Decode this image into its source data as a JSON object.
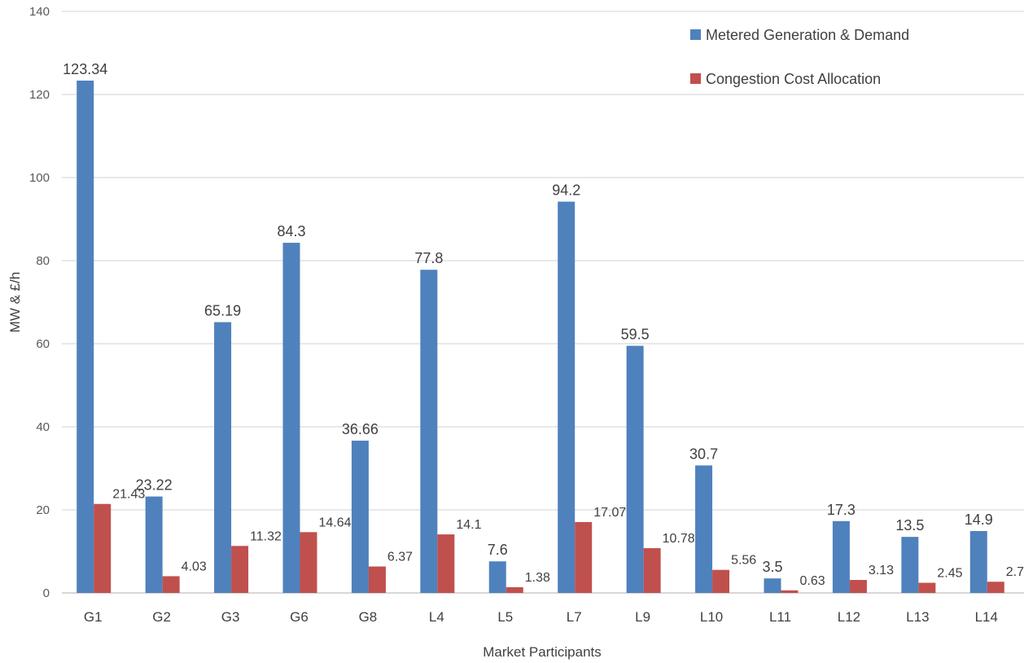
{
  "chart_data": {
    "type": "bar",
    "categories": [
      "G1",
      "G2",
      "G3",
      "G6",
      "G8",
      "L4",
      "L5",
      "L7",
      "L9",
      "L10",
      "L11",
      "L12",
      "L13",
      "L14"
    ],
    "series": [
      {
        "name": "Metered Generation & Demand",
        "color": "#4f81bd",
        "values": [
          123.34,
          23.22,
          65.19,
          84.3,
          36.66,
          77.8,
          7.6,
          94.2,
          59.5,
          30.7,
          3.5,
          17.3,
          13.5,
          14.9
        ],
        "labels": [
          "123.34",
          "23.22",
          "65.19",
          "84.3",
          "36.66",
          "77.8",
          "7.6",
          "94.2",
          "59.5",
          "30.7",
          "3.5",
          "17.3",
          "13.5",
          "14.9"
        ]
      },
      {
        "name": "Congestion Cost Allocation",
        "color": "#c0504d",
        "values": [
          21.43,
          4.03,
          11.32,
          14.64,
          6.37,
          14.1,
          1.38,
          17.07,
          10.78,
          5.56,
          0.63,
          3.13,
          2.45,
          2.7
        ],
        "labels": [
          "21.43",
          "4.03",
          "11.32",
          "14.64",
          "6.37",
          "14.1",
          "1.38",
          "17.07",
          "10.78",
          "5.56",
          "0.63",
          "3.13",
          "2.45",
          "2.7"
        ]
      }
    ],
    "title": "",
    "xlabel": "Market Participants",
    "ylabel": "MW & £/h",
    "ylim": [
      0,
      140
    ],
    "yticks": [
      0,
      20,
      40,
      60,
      80,
      100,
      120,
      140
    ],
    "grid": true,
    "legend_position": "top-right"
  }
}
